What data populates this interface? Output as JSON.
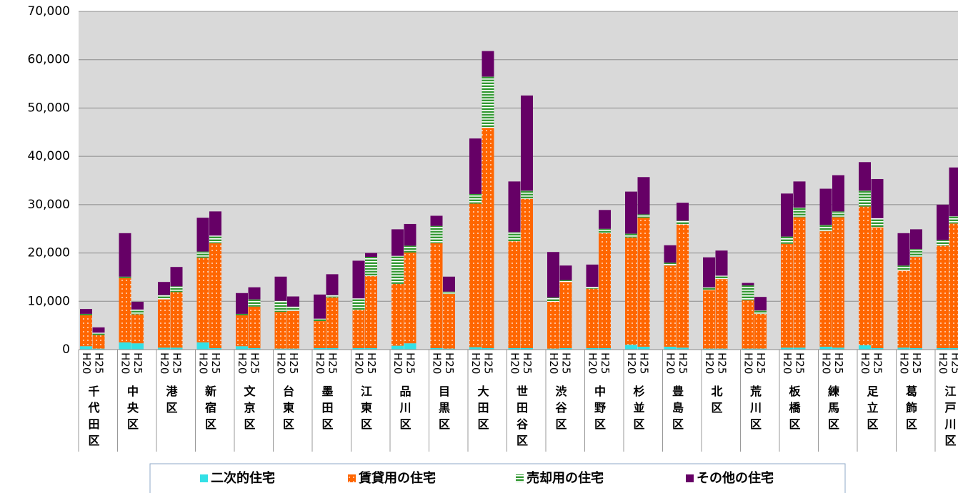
{
  "chart_data": {
    "type": "grouped-stacked-bar",
    "categories": [
      "千代田区",
      "中央区",
      "港区",
      "新宿区",
      "文京区",
      "台東区",
      "墨田区",
      "江東区",
      "品川区",
      "目黒区",
      "大田区",
      "世田谷区",
      "渋谷区",
      "中野区",
      "杉並区",
      "豊島区",
      "北区",
      "荒川区",
      "板橋区",
      "練馬区",
      "足立区",
      "葛飾区",
      "江戸川区"
    ],
    "subcategories": [
      "H20",
      "H25"
    ],
    "series": [
      {
        "name": "二次的住宅",
        "color": "#33e0e6",
        "values": [
          [
            700,
            200
          ],
          [
            1500,
            1300
          ],
          [
            400,
            400
          ],
          [
            1500,
            300
          ],
          [
            700,
            300
          ],
          [
            200,
            200
          ],
          [
            300,
            300
          ],
          [
            300,
            300
          ],
          [
            800,
            1300
          ],
          [
            300,
            200
          ],
          [
            500,
            300
          ],
          [
            300,
            300
          ],
          [
            200,
            300
          ],
          [
            300,
            300
          ],
          [
            1000,
            600
          ],
          [
            600,
            400
          ],
          [
            200,
            200
          ],
          [
            200,
            200
          ],
          [
            400,
            400
          ],
          [
            600,
            400
          ],
          [
            900,
            300
          ],
          [
            400,
            300
          ],
          [
            300,
            300
          ]
        ]
      },
      {
        "name": "賃貸用の住宅",
        "color": "#ff6600",
        "values": [
          [
            6400,
            2800
          ],
          [
            13300,
            6000
          ],
          [
            10000,
            11500
          ],
          [
            17500,
            21700
          ],
          [
            6400,
            8600
          ],
          [
            7600,
            7800
          ],
          [
            5600,
            10500
          ],
          [
            7900,
            14900
          ],
          [
            12800,
            18800
          ],
          [
            21700,
            11300
          ],
          [
            29700,
            45600
          ],
          [
            22100,
            30900
          ],
          [
            9700,
            13700
          ],
          [
            12300,
            23800
          ],
          [
            22200,
            26700
          ],
          [
            16800,
            25500
          ],
          [
            12100,
            14400
          ],
          [
            10000,
            7200
          ],
          [
            21500,
            27000
          ],
          [
            23900,
            27000
          ],
          [
            28700,
            25000
          ],
          [
            15900,
            18900
          ],
          [
            21200,
            25800
          ]
        ]
      },
      {
        "name": "売却用の住宅",
        "color": "#339933",
        "values": [
          [
            300,
            500
          ],
          [
            300,
            1000
          ],
          [
            900,
            1200
          ],
          [
            1300,
            1600
          ],
          [
            300,
            1500
          ],
          [
            2300,
            900
          ],
          [
            500,
            500
          ],
          [
            2400,
            4000
          ],
          [
            5800,
            1400
          ],
          [
            3600,
            500
          ],
          [
            2000,
            10600
          ],
          [
            1900,
            1700
          ],
          [
            900,
            400
          ],
          [
            400,
            900
          ],
          [
            800,
            700
          ],
          [
            600,
            800
          ],
          [
            600,
            700
          ],
          [
            3100,
            700
          ],
          [
            1500,
            2000
          ],
          [
            1300,
            1200
          ],
          [
            3300,
            1900
          ],
          [
            1100,
            1600
          ],
          [
            1200,
            1500
          ]
        ]
      },
      {
        "name": "その他の住宅",
        "color": "#660066",
        "values": [
          [
            1000,
            1100
          ],
          [
            9000,
            1600
          ],
          [
            2700,
            4000
          ],
          [
            7000,
            5000
          ],
          [
            4300,
            2500
          ],
          [
            5000,
            2100
          ],
          [
            5000,
            4300
          ],
          [
            7800,
            800
          ],
          [
            5500,
            4500
          ],
          [
            2100,
            3100
          ],
          [
            11500,
            5300
          ],
          [
            10500,
            19700
          ],
          [
            9400,
            3000
          ],
          [
            4600,
            3900
          ],
          [
            8700,
            7700
          ],
          [
            3600,
            3700
          ],
          [
            6200,
            5200
          ],
          [
            500,
            2800
          ],
          [
            8900,
            5400
          ],
          [
            7500,
            7500
          ],
          [
            5900,
            8100
          ],
          [
            6700,
            4100
          ],
          [
            7300,
            10100
          ]
        ]
      }
    ],
    "ylim": [
      0,
      70000
    ],
    "yticks": [
      0,
      {
        "value": 10000,
        "label": "10,000"
      },
      {
        "value": 20000,
        "label": "20,000"
      },
      {
        "value": 30000,
        "label": "30,000"
      },
      {
        "value": 40000,
        "label": "40,000"
      },
      {
        "value": 50000,
        "label": "50,000"
      },
      {
        "value": 60000,
        "label": "60,000"
      },
      {
        "value": 70000,
        "label": "70,000"
      }
    ],
    "grid": true,
    "legend": "bottom"
  }
}
